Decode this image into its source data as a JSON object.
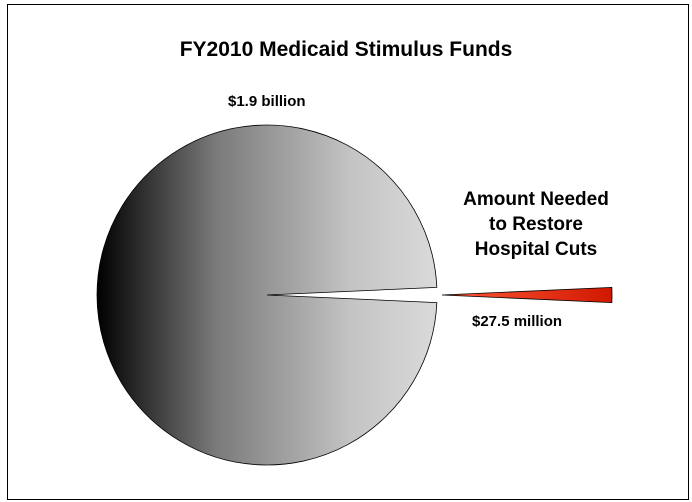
{
  "chart_data": {
    "type": "pie",
    "title": "FY2010 Medicaid Stimulus Funds",
    "slices": [
      {
        "name": "",
        "value_label": "$1.9 billion",
        "value": 1900,
        "unit": "million",
        "color": "#a0a0a0"
      },
      {
        "name": "Amount Needed to Restore Hospital Cuts",
        "value_label": "$27.5 million",
        "value": 27.5,
        "unit": "million",
        "color": "#e02000",
        "exploded": true
      }
    ],
    "slice_label_lines": [
      "Amount Needed",
      "to Restore",
      "Hospital Cuts"
    ]
  }
}
